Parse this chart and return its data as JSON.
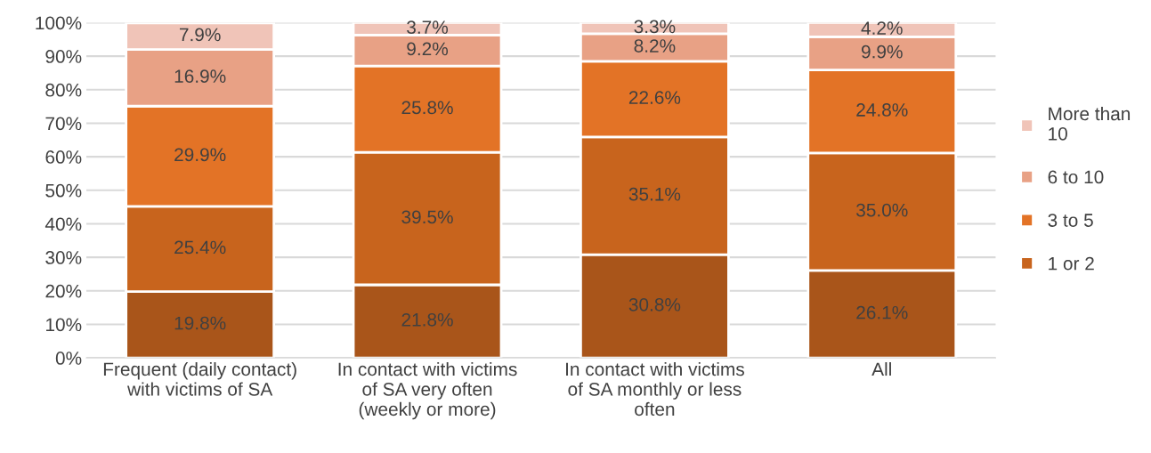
{
  "chart_data": {
    "type": "bar",
    "stacked": true,
    "categories": [
      "Frequent (daily contact)\nwith victims of SA",
      "In contact with victims\nof SA very often\n(weekly or more)",
      "In contact with victims\nof SA monthly or less\noften",
      "All"
    ],
    "series": [
      {
        "color": "#a9551a",
        "values": [
          19.8,
          21.8,
          30.8,
          26.1
        ],
        "value_labels": [
          "19.8%",
          "21.8%",
          "30.8%",
          "26.1%"
        ]
      },
      {
        "name": "1 or 2",
        "color": "#c8641d",
        "values": [
          25.4,
          39.5,
          35.1,
          35.0
        ],
        "value_labels": [
          "25.4%",
          "39.5%",
          "35.1%",
          "35.0%"
        ]
      },
      {
        "name": "3 to 5",
        "color": "#e37326",
        "values": [
          29.9,
          25.8,
          22.6,
          24.8
        ],
        "value_labels": [
          "29.9%",
          "25.8%",
          "22.6%",
          "24.8%"
        ]
      },
      {
        "name": "6 to 10",
        "color": "#e8a185",
        "values": [
          16.9,
          9.2,
          8.2,
          9.9
        ],
        "value_labels": [
          "16.9%",
          "9.2%",
          "8.2%",
          "9.9%"
        ]
      },
      {
        "name": "More than\n10",
        "color": "#f0c4b8",
        "values": [
          7.9,
          3.7,
          3.3,
          4.2
        ],
        "value_labels": [
          "7.9%",
          "3.7%",
          "3.3%",
          "4.2%"
        ]
      }
    ],
    "ylim": [
      0,
      100
    ],
    "yticks": [
      {
        "value": 0,
        "label": "0%"
      },
      {
        "value": 10,
        "label": "10%"
      },
      {
        "value": 20,
        "label": "20%"
      },
      {
        "value": 30,
        "label": "30%"
      },
      {
        "value": 40,
        "label": "40%"
      },
      {
        "value": 50,
        "label": "50%"
      },
      {
        "value": 60,
        "label": "60%"
      },
      {
        "value": 70,
        "label": "70%"
      },
      {
        "value": 80,
        "label": "80%"
      },
      {
        "value": 90,
        "label": "90%"
      },
      {
        "value": 100,
        "label": "100%"
      }
    ],
    "grid": "y",
    "legend": "right"
  }
}
